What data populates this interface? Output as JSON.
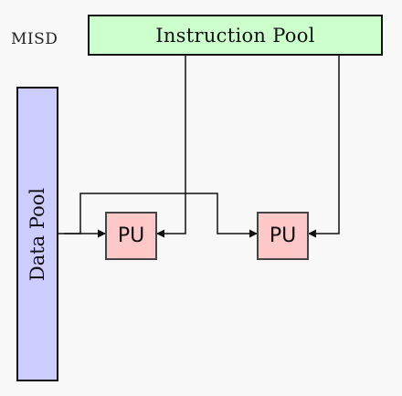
{
  "diagram": {
    "label": "MISD",
    "instruction_pool": "Instruction Pool",
    "data_pool": "Data Pool",
    "processing_units": [
      "PU",
      "PU"
    ]
  }
}
